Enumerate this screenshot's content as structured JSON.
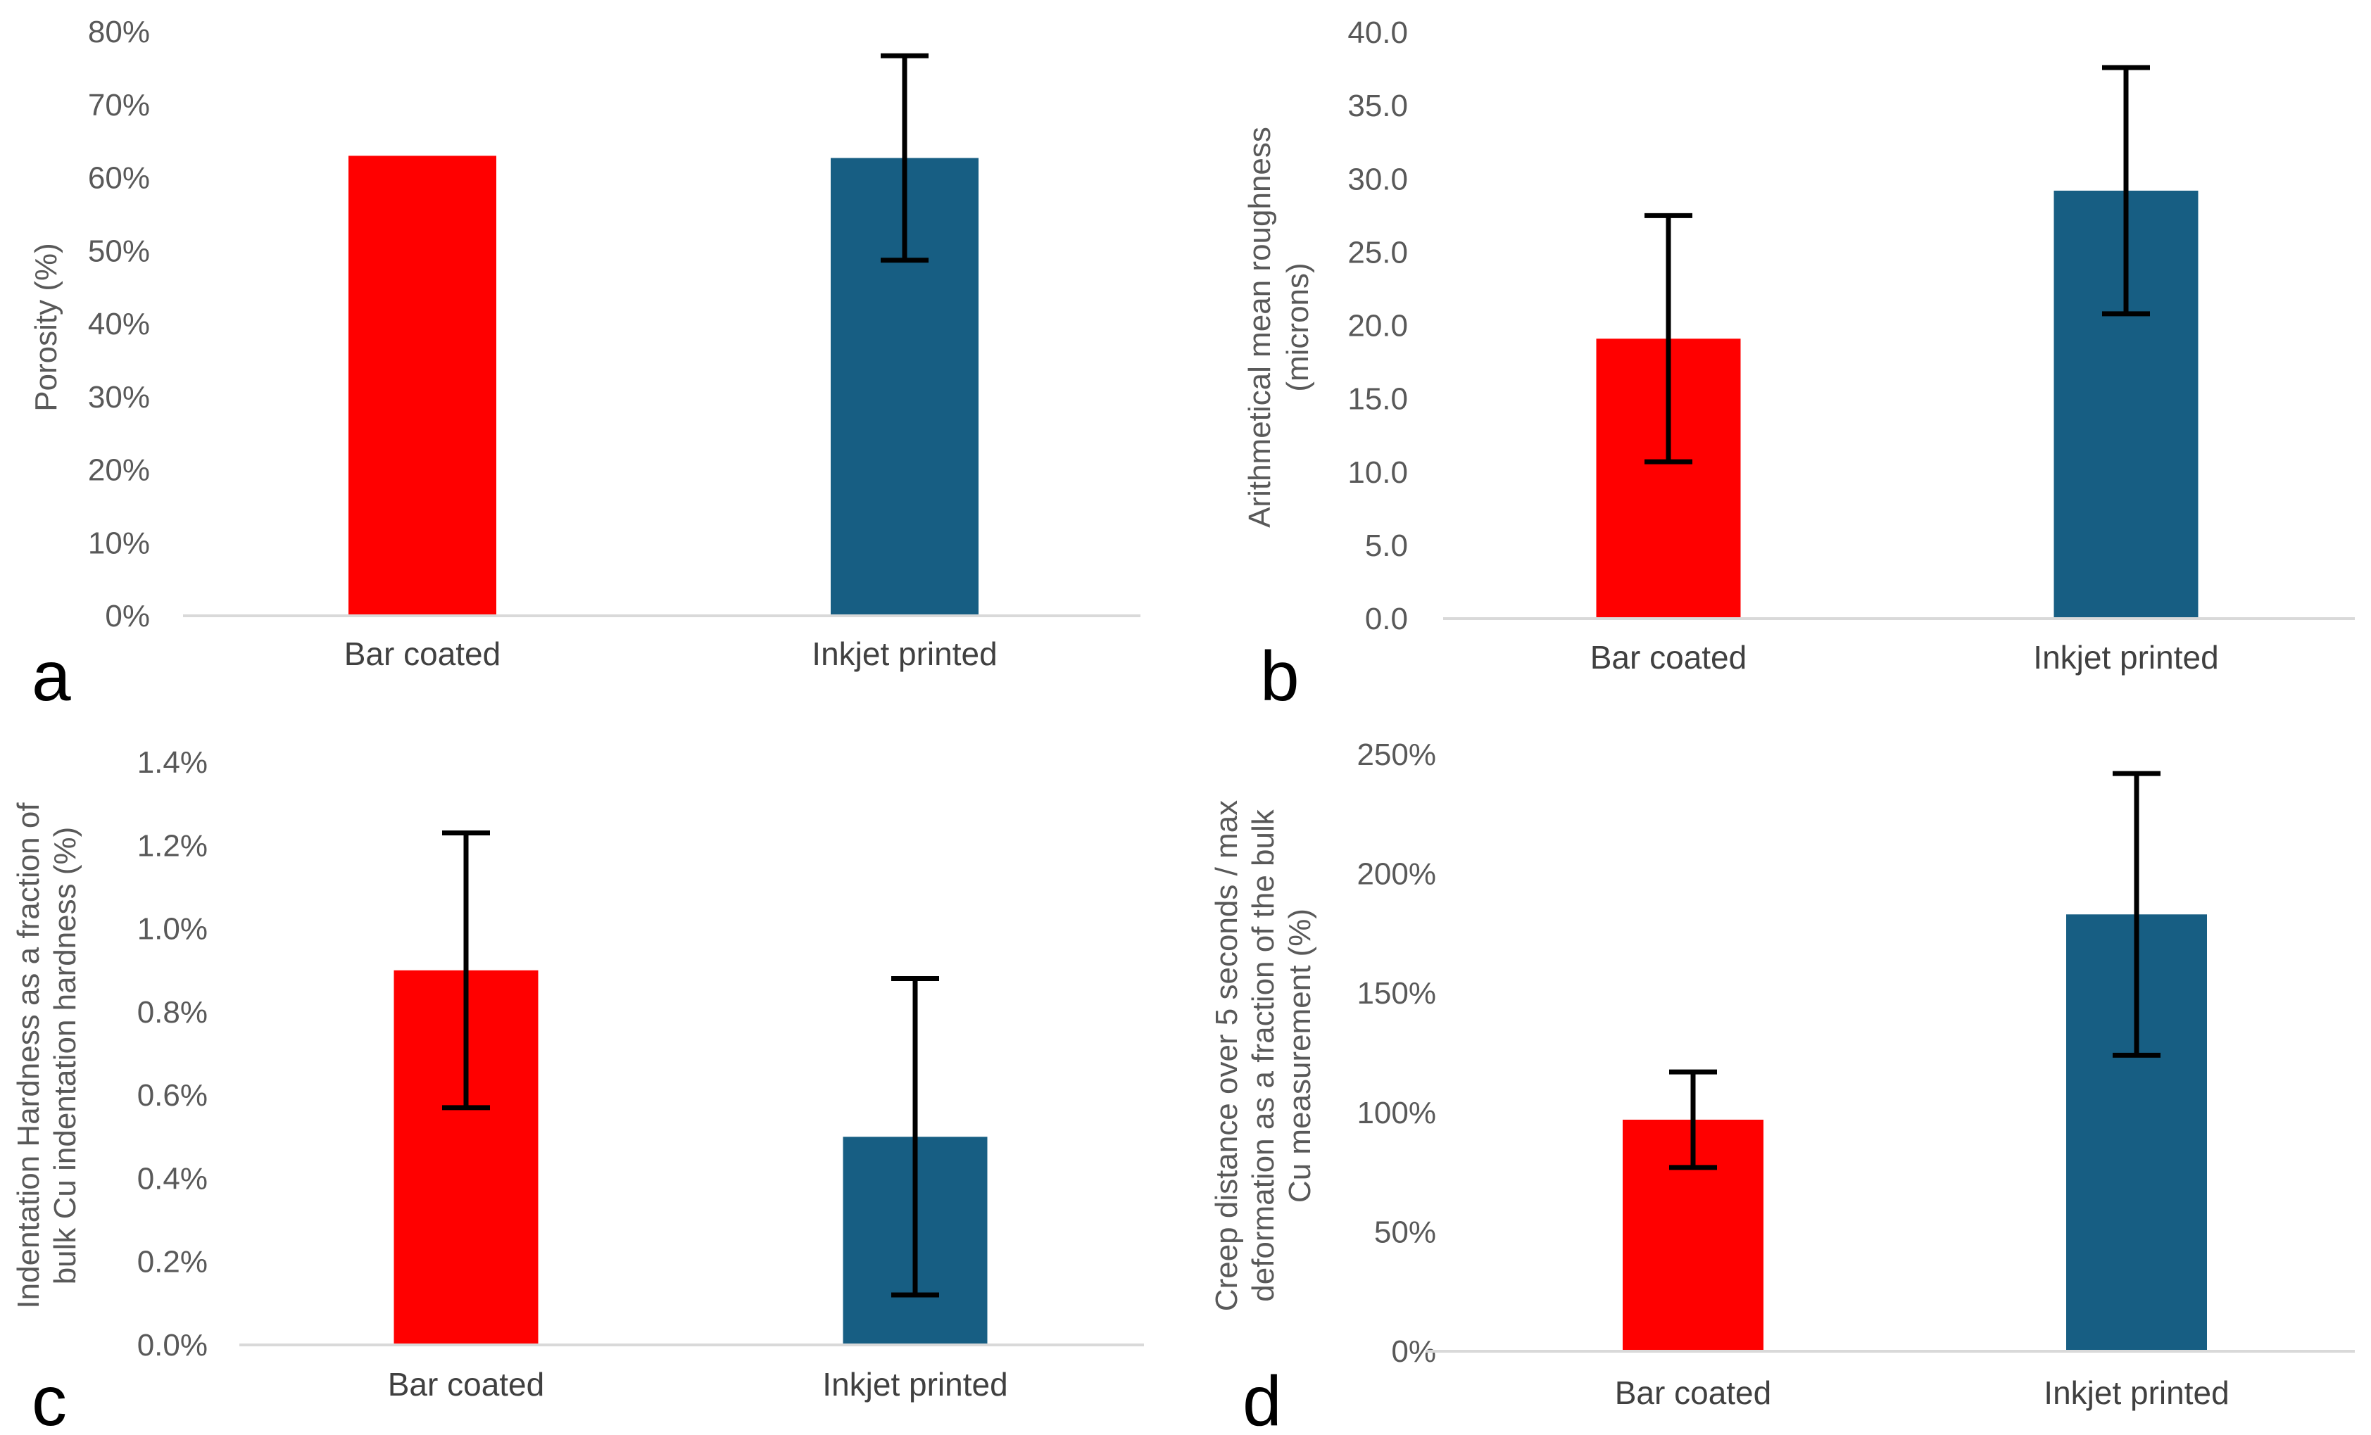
{
  "chart_data": [
    {
      "type": "bar",
      "panel": "a",
      "categories": [
        "Bar coated",
        "Inkjet printed"
      ],
      "values": [
        0.63,
        0.627
      ],
      "errors": [
        null,
        0.14
      ],
      "colors": [
        "#ff0000",
        "#175e83"
      ],
      "ylabel": [
        "Porosity (%)"
      ],
      "ylim": [
        0,
        0.8
      ],
      "yticks": [
        0,
        0.1,
        0.2,
        0.3,
        0.4,
        0.5,
        0.6,
        0.7,
        0.8
      ],
      "ytick_labels": [
        "0%",
        "10%",
        "20%",
        "30%",
        "40%",
        "50%",
        "60%",
        "70%",
        "80%"
      ]
    },
    {
      "type": "bar",
      "panel": "b",
      "categories": [
        "Bar coated",
        "Inkjet printed"
      ],
      "values": [
        19.1,
        29.2
      ],
      "errors": [
        8.4,
        8.4
      ],
      "colors": [
        "#ff0000",
        "#175e83"
      ],
      "ylabel": [
        "Arithmetical mean roughness",
        "(microns)"
      ],
      "ylim": [
        0,
        40
      ],
      "yticks": [
        0,
        5,
        10,
        15,
        20,
        25,
        30,
        35,
        40
      ],
      "ytick_labels": [
        "0.0",
        "5.0",
        "10.0",
        "15.0",
        "20.0",
        "25.0",
        "30.0",
        "35.0",
        "40.0"
      ]
    },
    {
      "type": "bar",
      "panel": "c",
      "categories": [
        "Bar coated",
        "Inkjet printed"
      ],
      "values": [
        0.009,
        0.005
      ],
      "errors": [
        0.0033,
        0.0038
      ],
      "colors": [
        "#ff0000",
        "#175e83"
      ],
      "ylabel": [
        "Indentation Hardness as a fraction of",
        "bulk Cu indentation hardness (%)"
      ],
      "ylim": [
        0,
        0.014
      ],
      "yticks": [
        0,
        0.002,
        0.004,
        0.006,
        0.008,
        0.01,
        0.012,
        0.014
      ],
      "ytick_labels": [
        "0.0%",
        "0.2%",
        "0.4%",
        "0.6%",
        "0.8%",
        "1.0%",
        "1.2%",
        "1.4%"
      ]
    },
    {
      "type": "bar",
      "panel": "d",
      "categories": [
        "Bar coated",
        "Inkjet printed"
      ],
      "values": [
        0.97,
        1.83
      ],
      "errors": [
        0.2,
        0.59
      ],
      "colors": [
        "#ff0000",
        "#175e83"
      ],
      "ylabel": [
        "Creep distance over 5 seconds / max",
        "deformation as a fraction of the bulk",
        "Cu measurement (%)"
      ],
      "ylim": [
        0,
        2.5
      ],
      "yticks": [
        0,
        0.5,
        1,
        1.5,
        2,
        2.5
      ],
      "ytick_labels": [
        "0%",
        "50%",
        "100%",
        "150%",
        "200%",
        "250%"
      ]
    }
  ]
}
